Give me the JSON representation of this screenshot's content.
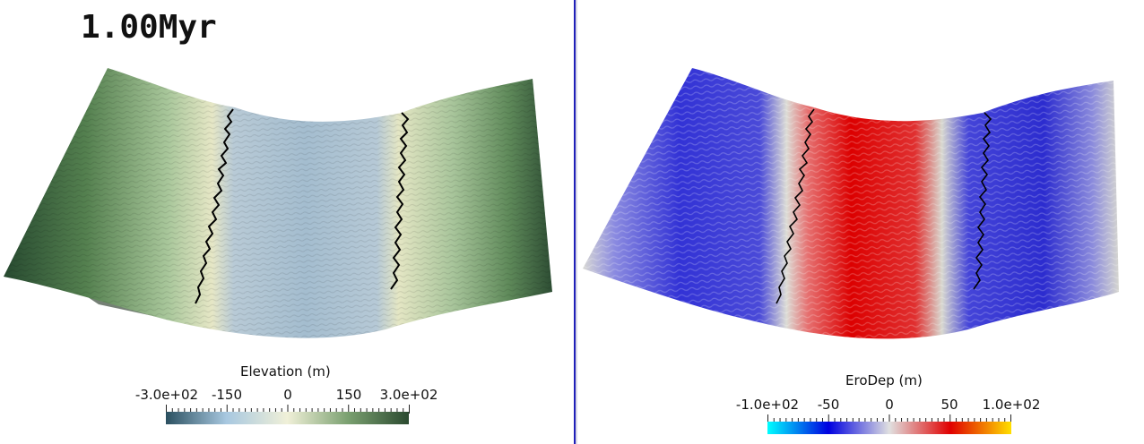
{
  "time_label": "1.00Myr",
  "left_view": {
    "colorbar": {
      "title": "Elevation (m)",
      "tick_labels": [
        "-3.0e+02",
        "-150",
        "0",
        "150",
        "3.0e+02"
      ],
      "range": [
        -300,
        300
      ],
      "colors": [
        "#2b5060",
        "#a8c8e0",
        "#f0f0d8",
        "#7aa070",
        "#2b4a30"
      ]
    }
  },
  "right_view": {
    "colorbar": {
      "title": "EroDep (m)",
      "tick_labels": [
        "-1.0e+02",
        "-50",
        "0",
        "50",
        "1.0e+02"
      ],
      "range": [
        -100,
        100
      ],
      "colors": [
        "#00ffff",
        "#0000e0",
        "#e0e0e0",
        "#e00000",
        "#ffe000"
      ]
    }
  }
}
